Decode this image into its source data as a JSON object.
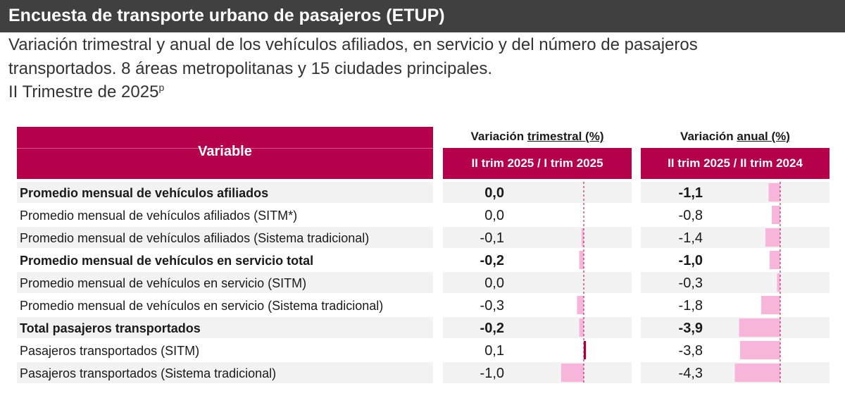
{
  "title": "Encuesta de transporte urbano de pasajeros (ETUP)",
  "subtitle_lines": [
    "Variación trimestral y anual de los vehículos afiliados, en servicio y del número de pasajeros",
    "transportados. 8 áreas metropolitanas y 15 ciudades principales.",
    "II Trimestre de 2025"
  ],
  "subtitle_sup": "p",
  "table": {
    "variable_header": "Variable",
    "quarterly_group_prefix": "Variación ",
    "quarterly_group_underlined": "trimestral (%)",
    "quarterly_sub": "II trim 2025 / I trim 2025",
    "annual_group_prefix": "Variación  ",
    "annual_group_underlined": "anual (%)",
    "annual_sub": "II trim 2025 / II trim 2024"
  },
  "colors": {
    "header": "#b5004b",
    "bar_negative": "#f7b6d9",
    "bar_positive": "#a0003c",
    "row_shade": "#f2f2f2",
    "axis": "#b5004b"
  },
  "chart_data": {
    "type": "table",
    "columns": [
      "Variable",
      "II trim 2025 / I trim 2025",
      "II trim 2025 / II trim 2024"
    ],
    "rows": [
      {
        "label": "Promedio mensual de vehículos afiliados",
        "bold": true,
        "trimestral": "0,0",
        "anual": "-1,1"
      },
      {
        "label": "Promedio mensual de vehículos afiliados (SITM*)",
        "bold": false,
        "trimestral": "0,0",
        "anual": "-0,8"
      },
      {
        "label": "Promedio mensual de vehículos afiliados (Sistema tradicional)",
        "bold": false,
        "trimestral": "-0,1",
        "anual": "-1,4"
      },
      {
        "label": "Promedio mensual de vehículos en servicio total",
        "bold": true,
        "trimestral": "-0,2",
        "anual": "-1,0"
      },
      {
        "label": "Promedio mensual de vehículos en servicio (SITM)",
        "bold": false,
        "trimestral": "0,0",
        "anual": "-0,3"
      },
      {
        "label": "Promedio mensual de vehículos en servicio (Sistema tradicional)",
        "bold": false,
        "trimestral": "-0,3",
        "anual": "-1,8"
      },
      {
        "label": "Total pasajeros transportados",
        "bold": true,
        "trimestral": "-0,2",
        "anual": "-3,9"
      },
      {
        "label": "Pasajeros transportados (SITM)",
        "bold": false,
        "trimestral": "0,1",
        "anual": "-3,8"
      },
      {
        "label": "Pasajeros transportados (Sistema tradicional)",
        "bold": false,
        "trimestral": "-1,0",
        "anual": "-4,3"
      }
    ]
  }
}
